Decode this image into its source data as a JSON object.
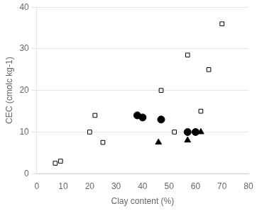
{
  "chart_data": {
    "type": "scatter",
    "x_label": "Clay content (%)",
    "y_label": "CEC (cmolc kg-1)",
    "series": [
      {
        "marker": "square_open",
        "color": "#000000",
        "x": [
          7,
          9,
          20,
          22,
          25,
          47,
          52,
          57,
          62,
          65,
          70
        ],
        "values": [
          2.5,
          3.0,
          10.0,
          14.0,
          7.5,
          20.0,
          10.0,
          28.5,
          15.0,
          25.0,
          36.0
        ]
      },
      {
        "marker": "circle",
        "color": "#000000",
        "x": [
          38,
          40,
          47,
          57,
          60
        ],
        "values": [
          14.0,
          13.5,
          13.0,
          10.0,
          10.0
        ]
      },
      {
        "marker": "triangle",
        "color": "#000000",
        "x": [
          46,
          57,
          62
        ],
        "values": [
          7.5,
          8.0,
          10.0
        ]
      }
    ],
    "xlim": [
      0,
      80
    ],
    "xticks": [
      0,
      10,
      20,
      30,
      40,
      50,
      60,
      70,
      80
    ],
    "ylim": [
      0,
      40
    ],
    "yticks": [
      0,
      10,
      20,
      30,
      40
    ],
    "grid": "y"
  }
}
